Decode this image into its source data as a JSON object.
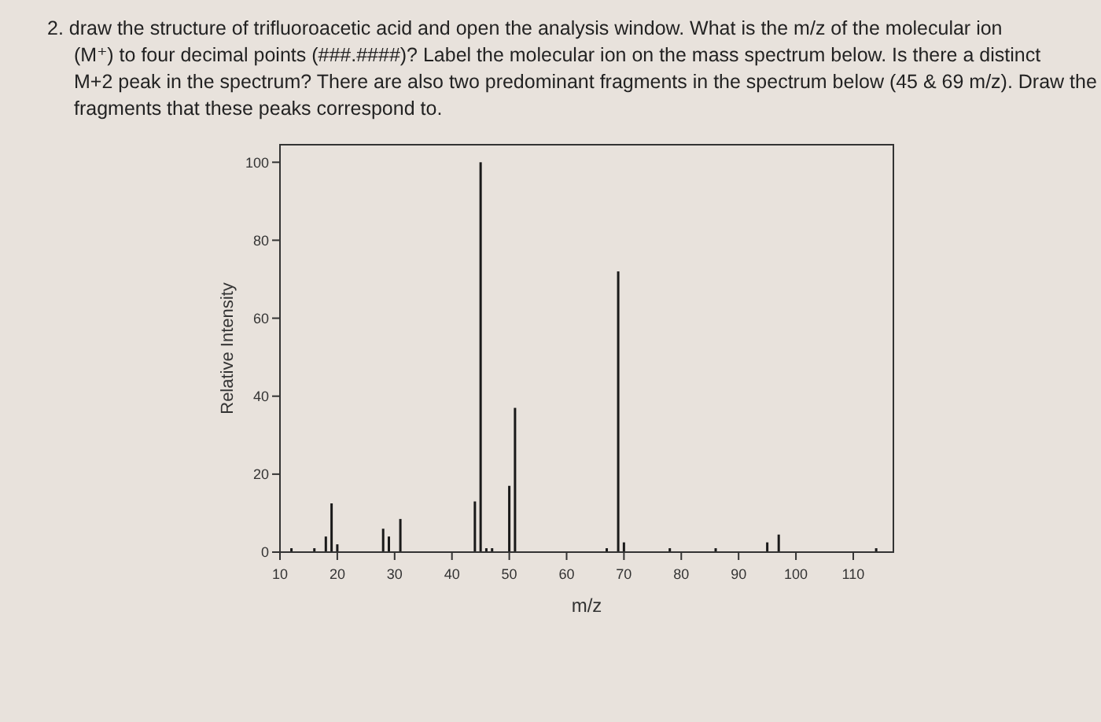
{
  "chart_data": {
    "type": "bar",
    "title": "2. draw the structure of trifluoroacetic acid and open the analysis window. What is the m/z of the molecular ion (M⁺) to four decimal points (###.####)? Label the molecular ion on the mass spectrum below. Is there a distinct M+2 peak in the spectrum? There are also two predominant fragments in the spectrum below (45 & 69 m/z). Draw the fragments that these peaks correspond to.",
    "xlabel": "m/z",
    "ylabel": "Relative Intensity",
    "x": [
      12,
      16,
      18,
      19,
      20,
      28,
      29,
      31,
      44,
      45,
      46,
      47,
      50,
      51,
      67,
      69,
      70,
      78,
      86,
      95,
      97,
      114
    ],
    "values": [
      1,
      1,
      4,
      12.5,
      2,
      6,
      4,
      8.5,
      13,
      100,
      1,
      1,
      17,
      37,
      1,
      72,
      2.5,
      1,
      1,
      2.5,
      4.5,
      1
    ],
    "color": "#1a1a1a",
    "xlim": [
      10,
      117
    ],
    "xticks": [
      10,
      20,
      30,
      40,
      50,
      60,
      70,
      80,
      90,
      100,
      110
    ],
    "ylim": [
      0,
      104.5
    ],
    "yticks": [
      0,
      20,
      40,
      60,
      80,
      100
    ],
    "grid": false
  }
}
